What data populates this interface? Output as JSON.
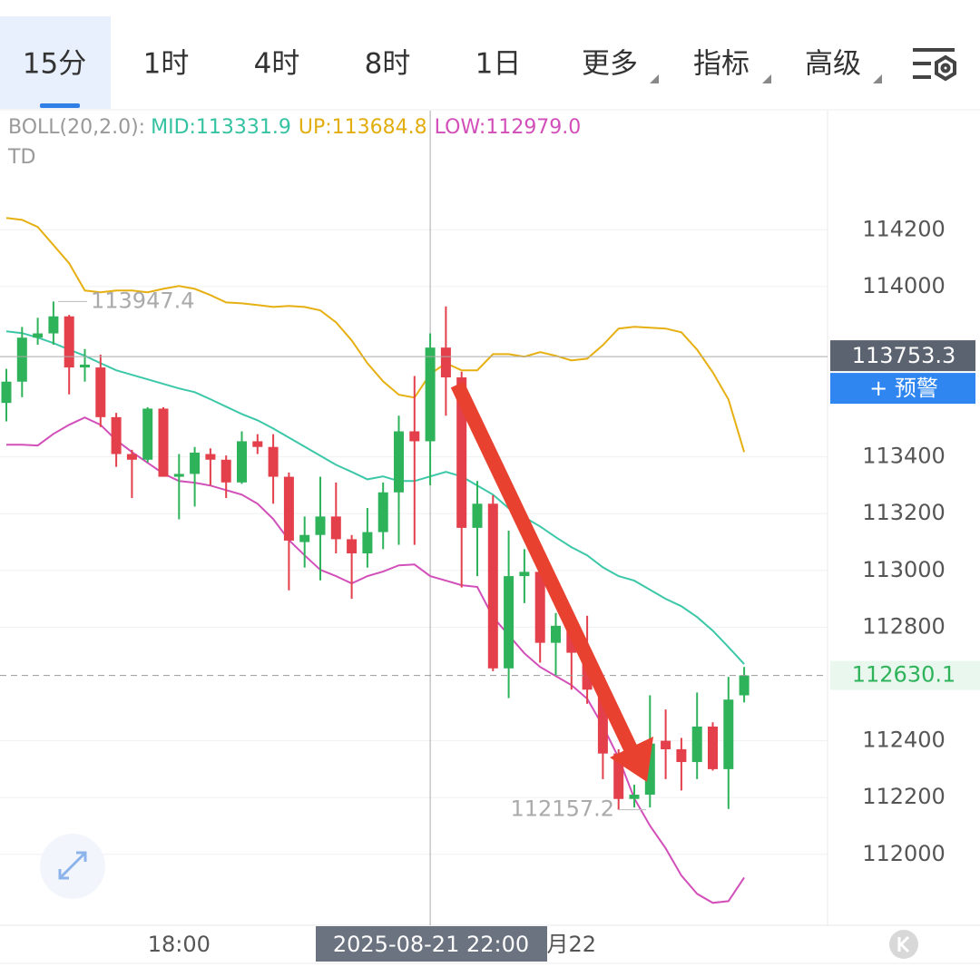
{
  "tabs": [
    "15分",
    "1时",
    "4时",
    "8时",
    "1日",
    "更多",
    "指标",
    "高级"
  ],
  "indicator": {
    "name": "BOLL(20,2.0):",
    "mid": "MID:113331.9",
    "up": "UP:113684.8",
    "low": "LOW:112979.0",
    "sub": "TD"
  },
  "alert_button": "+ 预警",
  "chart_data": {
    "type": "candlestick",
    "categories": [
      null,
      null,
      null,
      null,
      null,
      null,
      null,
      null,
      null,
      null,
      null,
      "18:00",
      null,
      null,
      null,
      null,
      null,
      null,
      null,
      null,
      null,
      null,
      null,
      null,
      null,
      null,
      null,
      null,
      null,
      null,
      null,
      null,
      null,
      null,
      null,
      null,
      "月22",
      null,
      null,
      null,
      null,
      null,
      null,
      null,
      null,
      null,
      null,
      null
    ],
    "open": [
      113590,
      113665,
      113820,
      113835,
      113895,
      113715,
      113715,
      113540,
      113410,
      113390,
      113570,
      113330,
      113340,
      113410,
      113390,
      113310,
      113455,
      113435,
      113330,
      113100,
      113125,
      113190,
      113110,
      113060,
      113135,
      113275,
      113490,
      113455,
      113785,
      113680,
      113150,
      113235,
      112655,
      112980,
      112995,
      112745,
      112805,
      112710,
      112580,
      112355,
      112195,
      112210,
      112400,
      112370,
      112325,
      112450,
      112300,
      112560
    ],
    "high": [
      113710,
      113858,
      113890,
      113947.4,
      113900,
      113780,
      113760,
      113555,
      113425,
      113575,
      113575,
      113410,
      113435,
      113430,
      113405,
      113490,
      113480,
      113480,
      113345,
      113190,
      113330,
      113310,
      113125,
      113220,
      113310,
      113545,
      113685,
      113835,
      113930,
      113700,
      113315,
      113265,
      113140,
      113075,
      113005,
      112850,
      112835,
      112840,
      112605,
      112370,
      112245,
      112560,
      112510,
      112410,
      112570,
      112465,
      112625,
      112660
    ],
    "low": [
      113525,
      113610,
      113795,
      113795,
      113620,
      113665,
      113505,
      113365,
      113255,
      113380,
      113330,
      113180,
      113225,
      113300,
      113255,
      113305,
      113410,
      113235,
      112930,
      113010,
      112965,
      113060,
      112900,
      113010,
      113075,
      113090,
      113090,
      113300,
      113545,
      112940,
      112980,
      112645,
      112550,
      112885,
      112675,
      112630,
      112580,
      112530,
      112265,
      112157.2,
      112165,
      112165,
      112265,
      112225,
      112265,
      112295,
      112160,
      112535
    ],
    "close": [
      113665,
      113820,
      113835,
      113895,
      113715,
      113725,
      113540,
      113410,
      113390,
      113570,
      113330,
      113340,
      113415,
      113390,
      113310,
      113455,
      113435,
      113330,
      113105,
      113125,
      113190,
      113110,
      113060,
      113135,
      113275,
      113490,
      113455,
      113785,
      113680,
      113150,
      113235,
      112655,
      112980,
      112995,
      112745,
      112805,
      112710,
      112580,
      112355,
      112195,
      112210,
      112390,
      112370,
      112325,
      112450,
      112300,
      112545,
      112630.1
    ],
    "up_color": "#2eb35b",
    "down_color": "#e3404b",
    "bands": {
      "up": [
        114242,
        114235,
        114210,
        114146,
        114082,
        113986,
        113980,
        113986,
        113986,
        113980,
        113992,
        114002,
        113992,
        113970,
        113944,
        113941,
        113935,
        113928,
        113932,
        113928,
        113916,
        113874,
        113810,
        113730,
        113666,
        113619,
        113609,
        113692,
        113730,
        113705,
        113705,
        113762,
        113762,
        113753,
        113769,
        113756,
        113740,
        113746,
        113794,
        113852,
        113858,
        113855,
        113852,
        113839,
        113778,
        113698,
        113602,
        113417
      ],
      "mid": [
        113842,
        113836,
        113820,
        113801,
        113778,
        113756,
        113730,
        113705,
        113689,
        113673,
        113657,
        113641,
        113628,
        113603,
        113577,
        113551,
        113529,
        113500,
        113468,
        113436,
        113404,
        113372,
        113347,
        113321,
        113331,
        113315,
        113315,
        113331,
        113347,
        113331,
        113299,
        113267,
        113219,
        113187,
        113155,
        113117,
        113082,
        113053,
        113011,
        112980,
        112964,
        112932,
        112900,
        112874,
        112836,
        112788,
        112730,
        112670
      ],
      "low": [
        113443,
        113443,
        113440,
        113481,
        113513,
        113539,
        113513,
        113459,
        113417,
        113379,
        113341,
        113315,
        113309,
        113299,
        113283,
        113267,
        113235,
        113181,
        113107,
        113053,
        113002,
        112980,
        112954,
        112980,
        112996,
        113018,
        113021,
        112980,
        112964,
        112948,
        112942,
        112836,
        112772,
        112708,
        112660,
        112628,
        112596,
        112548,
        112452,
        112340,
        112197,
        112101,
        112021,
        111925,
        111861,
        111829,
        111835,
        111918
      ],
      "up_color": "#e6b012",
      "mid_color": "#3cc8a8",
      "low_color": "#d24fb9"
    },
    "ylim": [
      111750,
      114610
    ],
    "yticks": [
      112000,
      112200,
      112400,
      112800,
      113000,
      113200,
      113400,
      114000,
      114200
    ],
    "grid": true,
    "crosshair_label": "2025-08-21 22:00",
    "crosshair_price": 113753.3,
    "last_price": 112630.1,
    "high_label": 113947.4,
    "low_label": 112157.2
  }
}
